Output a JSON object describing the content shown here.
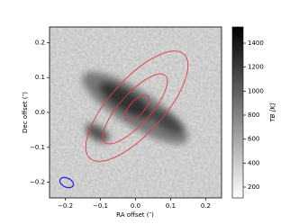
{
  "chart_data": {
    "type": "image",
    "x_label": "RA offset (″)",
    "y_label": "Dec offset (″)",
    "xlim": [
      -0.245,
      0.245
    ],
    "ylim": [
      -0.245,
      0.245
    ],
    "xticks": [
      {
        "value": -0.2,
        "label": "−0.2"
      },
      {
        "value": -0.1,
        "label": "−0.1"
      },
      {
        "value": 0,
        "label": "0.0"
      },
      0.1,
      0.2
    ],
    "yticks": [
      {
        "value": -0.2,
        "label": "−0.2"
      },
      {
        "value": -0.1,
        "label": "−0.1"
      },
      {
        "value": 0,
        "label": "0.0"
      },
      0.1,
      0.2
    ],
    "colorbar": {
      "label": "TB [K]",
      "lim": [
        110,
        1535
      ],
      "ticks": [
        200,
        400,
        600,
        800,
        1000,
        1200,
        1400
      ]
    },
    "grid": false
  }
}
